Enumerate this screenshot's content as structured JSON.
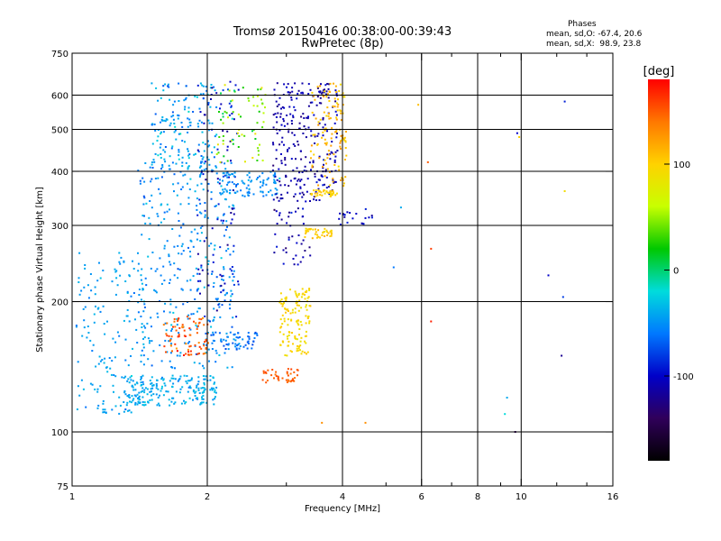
{
  "title": "Tromsø 20150416 00:38:00-00:39:43",
  "subtitle": "RwPretec (8p)",
  "stats": {
    "heading": "Phases",
    "o_mode": "mean, sd,O: -67.4, 20.6",
    "x_mode": "mean, sd,X:  98.9, 23.8"
  },
  "chart_data": {
    "type": "scatter",
    "xlabel": "Frequency [MHz]",
    "ylabel": "Stationary phase Virtual Height [km]",
    "xscale": "log",
    "yscale": "log",
    "xlim": [
      1,
      16
    ],
    "ylim": [
      75,
      750
    ],
    "xticks": [
      1,
      2,
      4,
      6,
      8,
      10,
      16
    ],
    "x_gridlines": [
      2,
      4,
      6,
      8,
      10
    ],
    "x_minor_ticks": [
      3,
      5,
      7,
      9,
      12,
      14
    ],
    "yticks": [
      75,
      100,
      200,
      300,
      400,
      500,
      600,
      750
    ],
    "y_gridlines": [
      100,
      200,
      300,
      400,
      500,
      600
    ],
    "grid": true,
    "colorbar": {
      "label": "[deg]",
      "range": [
        -180,
        180
      ],
      "ticks": [
        -100,
        0,
        100
      ],
      "colors": [
        "#000000",
        "#30005a",
        "#0000c8",
        "#0078ff",
        "#00dcdc",
        "#00c800",
        "#c8ff00",
        "#ffd200",
        "#ff7800",
        "#ff0000"
      ]
    },
    "clusters": [
      {
        "fmin": 1.02,
        "fmax": 1.45,
        "hmin": 110,
        "hmax": 260,
        "phase": -45,
        "spread": 14,
        "count": 170
      },
      {
        "fmin": 1.3,
        "fmax": 2.1,
        "hmin": 115,
        "hmax": 135,
        "phase": -40,
        "spread": 12,
        "count": 200
      },
      {
        "fmin": 1.4,
        "fmax": 2.3,
        "hmin": 140,
        "hmax": 420,
        "phase": -50,
        "spread": 18,
        "count": 330
      },
      {
        "fmin": 1.5,
        "fmax": 2.1,
        "hmin": 400,
        "hmax": 640,
        "phase": -45,
        "spread": 22,
        "count": 170
      },
      {
        "fmin": 1.6,
        "fmax": 2.05,
        "hmin": 150,
        "hmax": 185,
        "phase": 150,
        "spread": 20,
        "count": 80
      },
      {
        "fmin": 1.9,
        "fmax": 2.35,
        "hmin": 180,
        "hmax": 650,
        "phase": -95,
        "spread": 25,
        "count": 110
      },
      {
        "fmin": 2.0,
        "fmax": 2.6,
        "hmin": 155,
        "hmax": 170,
        "phase": -60,
        "spread": 15,
        "count": 60
      },
      {
        "fmin": 2.1,
        "fmax": 2.9,
        "hmin": 350,
        "hmax": 400,
        "phase": -50,
        "spread": 12,
        "count": 90
      },
      {
        "fmin": 2.1,
        "fmax": 2.7,
        "hmin": 420,
        "hmax": 640,
        "phase": 40,
        "spread": 45,
        "count": 70
      },
      {
        "fmin": 2.6,
        "fmax": 3.2,
        "hmin": 130,
        "hmax": 140,
        "phase": 150,
        "spread": 10,
        "count": 40
      },
      {
        "fmin": 2.9,
        "fmax": 3.4,
        "hmin": 150,
        "hmax": 215,
        "phase": 95,
        "spread": 12,
        "count": 130
      },
      {
        "fmin": 2.8,
        "fmax": 3.9,
        "hmin": 340,
        "hmax": 640,
        "phase": -110,
        "spread": 15,
        "count": 260
      },
      {
        "fmin": 3.4,
        "fmax": 4.1,
        "hmin": 370,
        "hmax": 640,
        "phase": 110,
        "spread": 18,
        "count": 120
      },
      {
        "fmin": 3.3,
        "fmax": 3.8,
        "hmin": 280,
        "hmax": 295,
        "phase": 100,
        "spread": 10,
        "count": 40
      },
      {
        "fmin": 3.4,
        "fmax": 3.9,
        "hmin": 350,
        "hmax": 362,
        "phase": 100,
        "spread": 10,
        "count": 40
      },
      {
        "fmin": 2.8,
        "fmax": 3.4,
        "hmin": 240,
        "hmax": 330,
        "phase": -110,
        "spread": 20,
        "count": 40
      },
      {
        "fmin": 3.9,
        "fmax": 4.7,
        "hmin": 300,
        "hmax": 330,
        "phase": -100,
        "spread": 20,
        "count": 20
      }
    ],
    "isolated_points": [
      {
        "f": 5.2,
        "h": 240,
        "phase": -60
      },
      {
        "f": 5.4,
        "h": 330,
        "phase": -40
      },
      {
        "f": 4.5,
        "h": 105,
        "phase": 130
      },
      {
        "f": 3.6,
        "h": 105,
        "phase": 130
      },
      {
        "f": 5.9,
        "h": 570,
        "phase": 110
      },
      {
        "f": 6.2,
        "h": 420,
        "phase": 150
      },
      {
        "f": 6.3,
        "h": 265,
        "phase": 160
      },
      {
        "f": 6.3,
        "h": 180,
        "phase": 170
      },
      {
        "f": 9.3,
        "h": 120,
        "phase": -40
      },
      {
        "f": 9.2,
        "h": 110,
        "phase": -20
      },
      {
        "f": 9.7,
        "h": 100,
        "phase": -140
      },
      {
        "f": 9.9,
        "h": 480,
        "phase": 100
      },
      {
        "f": 9.8,
        "h": 490,
        "phase": -100
      },
      {
        "f": 11.5,
        "h": 230,
        "phase": -100
      },
      {
        "f": 12.5,
        "h": 580,
        "phase": -90
      },
      {
        "f": 12.4,
        "h": 205,
        "phase": -80
      },
      {
        "f": 12.3,
        "h": 150,
        "phase": -120
      },
      {
        "f": 12.5,
        "h": 360,
        "phase": 90
      }
    ]
  }
}
